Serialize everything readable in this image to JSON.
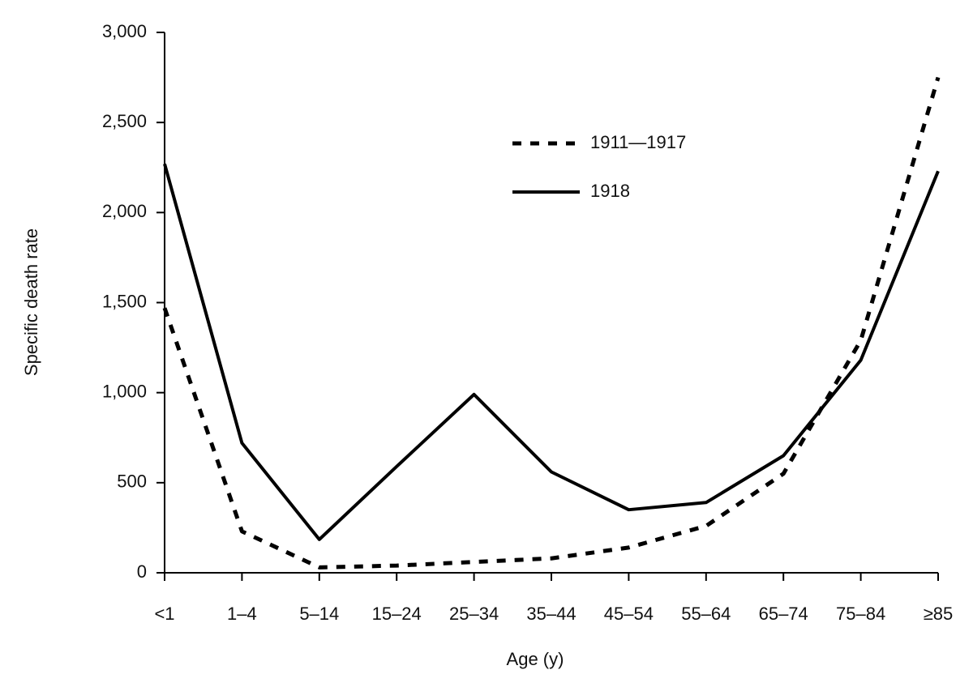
{
  "chart_data": {
    "type": "line",
    "x_label": "Age (y)",
    "y_label": "Specific death rate",
    "categories": [
      "<1",
      "1–4",
      "5–14",
      "15–24",
      "25–34",
      "35–44",
      "45–54",
      "55–64",
      "65–74",
      "75–84",
      "≥85"
    ],
    "series": [
      {
        "name": "1911—1917",
        "color": "#000000",
        "dash": true,
        "values": [
          1470,
          230,
          30,
          40,
          60,
          80,
          140,
          260,
          550,
          1290,
          2750
        ]
      },
      {
        "name": "1918",
        "color": "#000000",
        "dash": false,
        "values": [
          2270,
          720,
          185,
          590,
          990,
          560,
          350,
          390,
          650,
          1180,
          2230
        ]
      }
    ],
    "ylim": [
      0,
      3000
    ],
    "yticks": [
      0,
      500,
      {
        "value": 1000,
        "label": "1,000"
      },
      {
        "value": 1500,
        "label": "1,500"
      },
      {
        "value": 2000,
        "label": "2,000"
      },
      {
        "value": 2500,
        "label": "2,500"
      },
      {
        "value": 3000,
        "label": "3,000"
      }
    ],
    "grid": false
  }
}
